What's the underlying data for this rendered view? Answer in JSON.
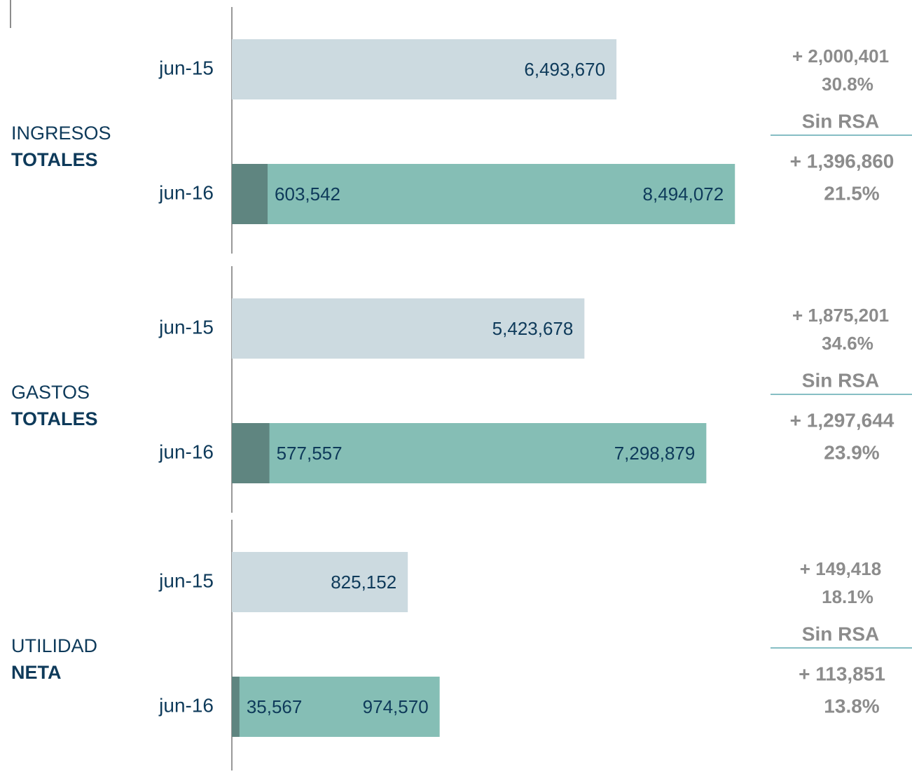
{
  "chart_data": [
    {
      "type": "bar",
      "title": "INGRESOS",
      "title_bold": "TOTALES",
      "categories": [
        "jun-15",
        "jun-16"
      ],
      "values": [
        6493670,
        8494072
      ],
      "value_labels": [
        "6,493,670",
        "8,494,072"
      ],
      "rsa_values": [
        null,
        603542
      ],
      "rsa_value_labels": [
        null,
        "603,542"
      ],
      "xlim": [
        0,
        9000000
      ],
      "colors": [
        "#ccdae0",
        "#85beb5"
      ],
      "rsa_color": "#5f8580",
      "change": "+ 2,000,401",
      "change_pct": "30.8%",
      "sin_rsa": "Sin RSA",
      "change_sin_rsa": "+ 1,396,860",
      "change_sin_rsa_pct": "21.5%"
    },
    {
      "type": "bar",
      "title": "GASTOS",
      "title_bold": "TOTALES",
      "categories": [
        "jun-15",
        "jun-16"
      ],
      "values": [
        5423678,
        7298879
      ],
      "value_labels": [
        "5,423,678",
        "7,298,879"
      ],
      "rsa_values": [
        null,
        577557
      ],
      "rsa_value_labels": [
        null,
        "577,557"
      ],
      "xlim": [
        0,
        8200000
      ],
      "colors": [
        "#ccdae0",
        "#85beb5"
      ],
      "rsa_color": "#5f8580",
      "change": "+ 1,875,201",
      "change_pct": "34.6%",
      "sin_rsa": "Sin RSA",
      "change_sin_rsa": "+ 1,297,644",
      "change_sin_rsa_pct": "23.9%"
    },
    {
      "type": "bar",
      "title": "UTILIDAD",
      "title_bold": "NETA",
      "categories": [
        "jun-15",
        "jun-16"
      ],
      "values": [
        825152,
        974570
      ],
      "value_labels": [
        "825,152",
        "974,570"
      ],
      "rsa_values": [
        null,
        35567
      ],
      "rsa_value_labels": [
        null,
        "35,567"
      ],
      "xlim": [
        0,
        2500000
      ],
      "colors": [
        "#ccdae0",
        "#85beb5"
      ],
      "rsa_color": "#5f8580",
      "change": "+ 149,418",
      "change_pct": "18.1%",
      "sin_rsa": "Sin RSA",
      "change_sin_rsa": "+ 113,851",
      "change_sin_rsa_pct": "13.8%"
    }
  ]
}
